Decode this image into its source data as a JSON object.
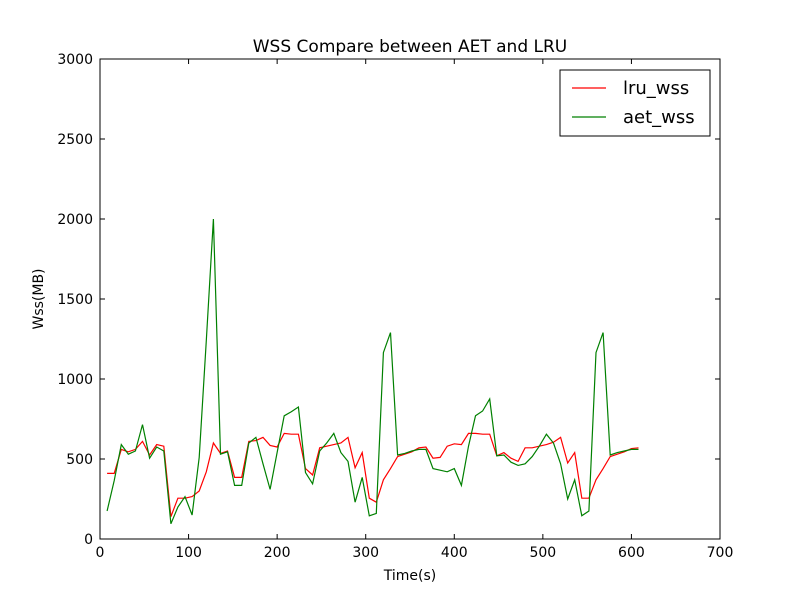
{
  "chart_data": {
    "type": "line",
    "title": "WSS Compare between AET and LRU",
    "xlabel": "Time(s)",
    "ylabel": "Wss(MB)",
    "xlim": [
      0,
      700
    ],
    "ylim": [
      0,
      3000
    ],
    "xticks": [
      0,
      100,
      200,
      300,
      400,
      500,
      600,
      700
    ],
    "yticks": [
      0,
      500,
      1000,
      1500,
      2000,
      2500,
      3000
    ],
    "grid": false,
    "legend": "top-right",
    "series": [
      {
        "name": "lru_wss",
        "color": "#ff0000",
        "x": [
          8,
          16,
          24,
          32,
          40,
          48,
          56,
          64,
          72,
          80,
          88,
          96,
          104,
          112,
          120,
          128,
          136,
          144,
          152,
          160,
          168,
          176,
          184,
          192,
          200,
          208,
          216,
          224,
          232,
          240,
          248,
          256,
          264,
          272,
          280,
          288,
          296,
          304,
          312,
          320,
          328,
          336,
          344,
          352,
          360,
          368,
          376,
          384,
          392,
          400,
          408,
          416,
          424,
          432,
          440,
          448,
          456,
          464,
          472,
          480,
          488,
          496,
          504,
          512,
          520,
          528,
          536,
          544,
          552,
          560,
          568,
          576,
          584,
          592,
          600,
          608
        ],
        "values": [
          410,
          410,
          560,
          545,
          560,
          610,
          525,
          590,
          580,
          140,
          255,
          255,
          265,
          300,
          420,
          600,
          535,
          550,
          385,
          385,
          610,
          615,
          635,
          585,
          575,
          660,
          655,
          655,
          440,
          400,
          570,
          580,
          590,
          600,
          635,
          445,
          540,
          255,
          230,
          370,
          440,
          515,
          530,
          545,
          570,
          575,
          505,
          510,
          580,
          595,
          590,
          660,
          660,
          655,
          655,
          520,
          540,
          505,
          485,
          570,
          570,
          580,
          590,
          605,
          635,
          475,
          540,
          255,
          255,
          370,
          440,
          515,
          530,
          545,
          565,
          570
        ]
      },
      {
        "name": "aet_wss",
        "color": "#008000",
        "x": [
          8,
          16,
          24,
          32,
          40,
          48,
          56,
          64,
          72,
          80,
          88,
          96,
          104,
          112,
          120,
          128,
          136,
          144,
          152,
          160,
          168,
          176,
          184,
          192,
          200,
          208,
          216,
          224,
          232,
          240,
          248,
          256,
          264,
          272,
          280,
          288,
          296,
          304,
          312,
          320,
          328,
          336,
          344,
          352,
          360,
          368,
          376,
          384,
          392,
          400,
          408,
          416,
          424,
          432,
          440,
          448,
          456,
          464,
          472,
          480,
          488,
          496,
          504,
          512,
          520,
          528,
          536,
          544,
          552,
          560,
          568,
          576,
          584,
          592,
          600,
          608
        ],
        "values": [
          175,
          365,
          590,
          530,
          550,
          715,
          505,
          575,
          550,
          95,
          200,
          265,
          150,
          510,
          1240,
          2000,
          530,
          545,
          335,
          335,
          600,
          635,
          470,
          310,
          540,
          770,
          795,
          825,
          415,
          345,
          550,
          600,
          660,
          540,
          485,
          230,
          385,
          145,
          160,
          1165,
          1290,
          525,
          535,
          550,
          560,
          560,
          440,
          430,
          420,
          440,
          335,
          580,
          770,
          800,
          875,
          520,
          525,
          480,
          460,
          470,
          515,
          580,
          655,
          600,
          470,
          250,
          370,
          145,
          175,
          1165,
          1290,
          525,
          540,
          550,
          560,
          560
        ]
      }
    ]
  }
}
